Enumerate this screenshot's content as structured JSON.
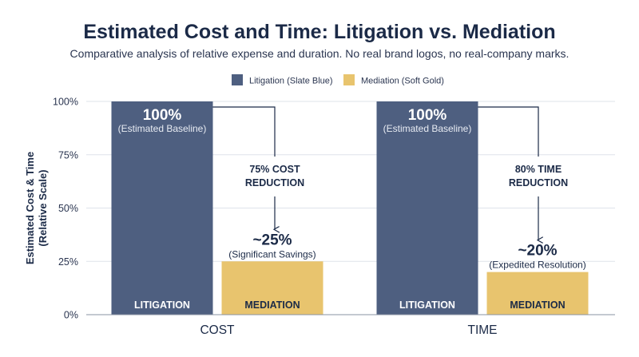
{
  "chart_data": {
    "type": "bar",
    "title": "Estimated Cost and Time: Litigation vs. Mediation",
    "subtitle": "Comparative analysis of relative expense and duration. No real brand logos, no real-company marks.",
    "ylabel_lines": [
      "Estimated Cost & Time",
      "(Relative Scale)"
    ],
    "xlabel": "",
    "ylim": [
      0,
      100
    ],
    "yticks": [
      0,
      25,
      50,
      75,
      100
    ],
    "ytick_labels": [
      "0%",
      "25%",
      "50%",
      "75%",
      "100%"
    ],
    "grid": true,
    "legend_position": "top-center",
    "categories": [
      "COST",
      "TIME"
    ],
    "series": [
      {
        "name": "Litigation (Slate Blue)",
        "bar_label": "LITIGATION",
        "color": "#4e5f80",
        "values": [
          100,
          100
        ],
        "value_labels": [
          "100%",
          "100%"
        ],
        "notes": [
          "(Estimated Baseline)",
          "(Estimated Baseline)"
        ]
      },
      {
        "name": "Mediation (Soft Gold)",
        "bar_label": "MEDIATION",
        "color": "#e8c46e",
        "values": [
          25,
          20
        ],
        "value_labels": [
          "~25%",
          "~20%"
        ],
        "notes": [
          "(Significant Savings)",
          "(Expedited Resolution)"
        ]
      }
    ],
    "annotations": [
      {
        "category": "COST",
        "lines": [
          "75% COST",
          "REDUCTION"
        ]
      },
      {
        "category": "TIME",
        "lines": [
          "80% TIME",
          "REDUCTION"
        ]
      }
    ]
  }
}
